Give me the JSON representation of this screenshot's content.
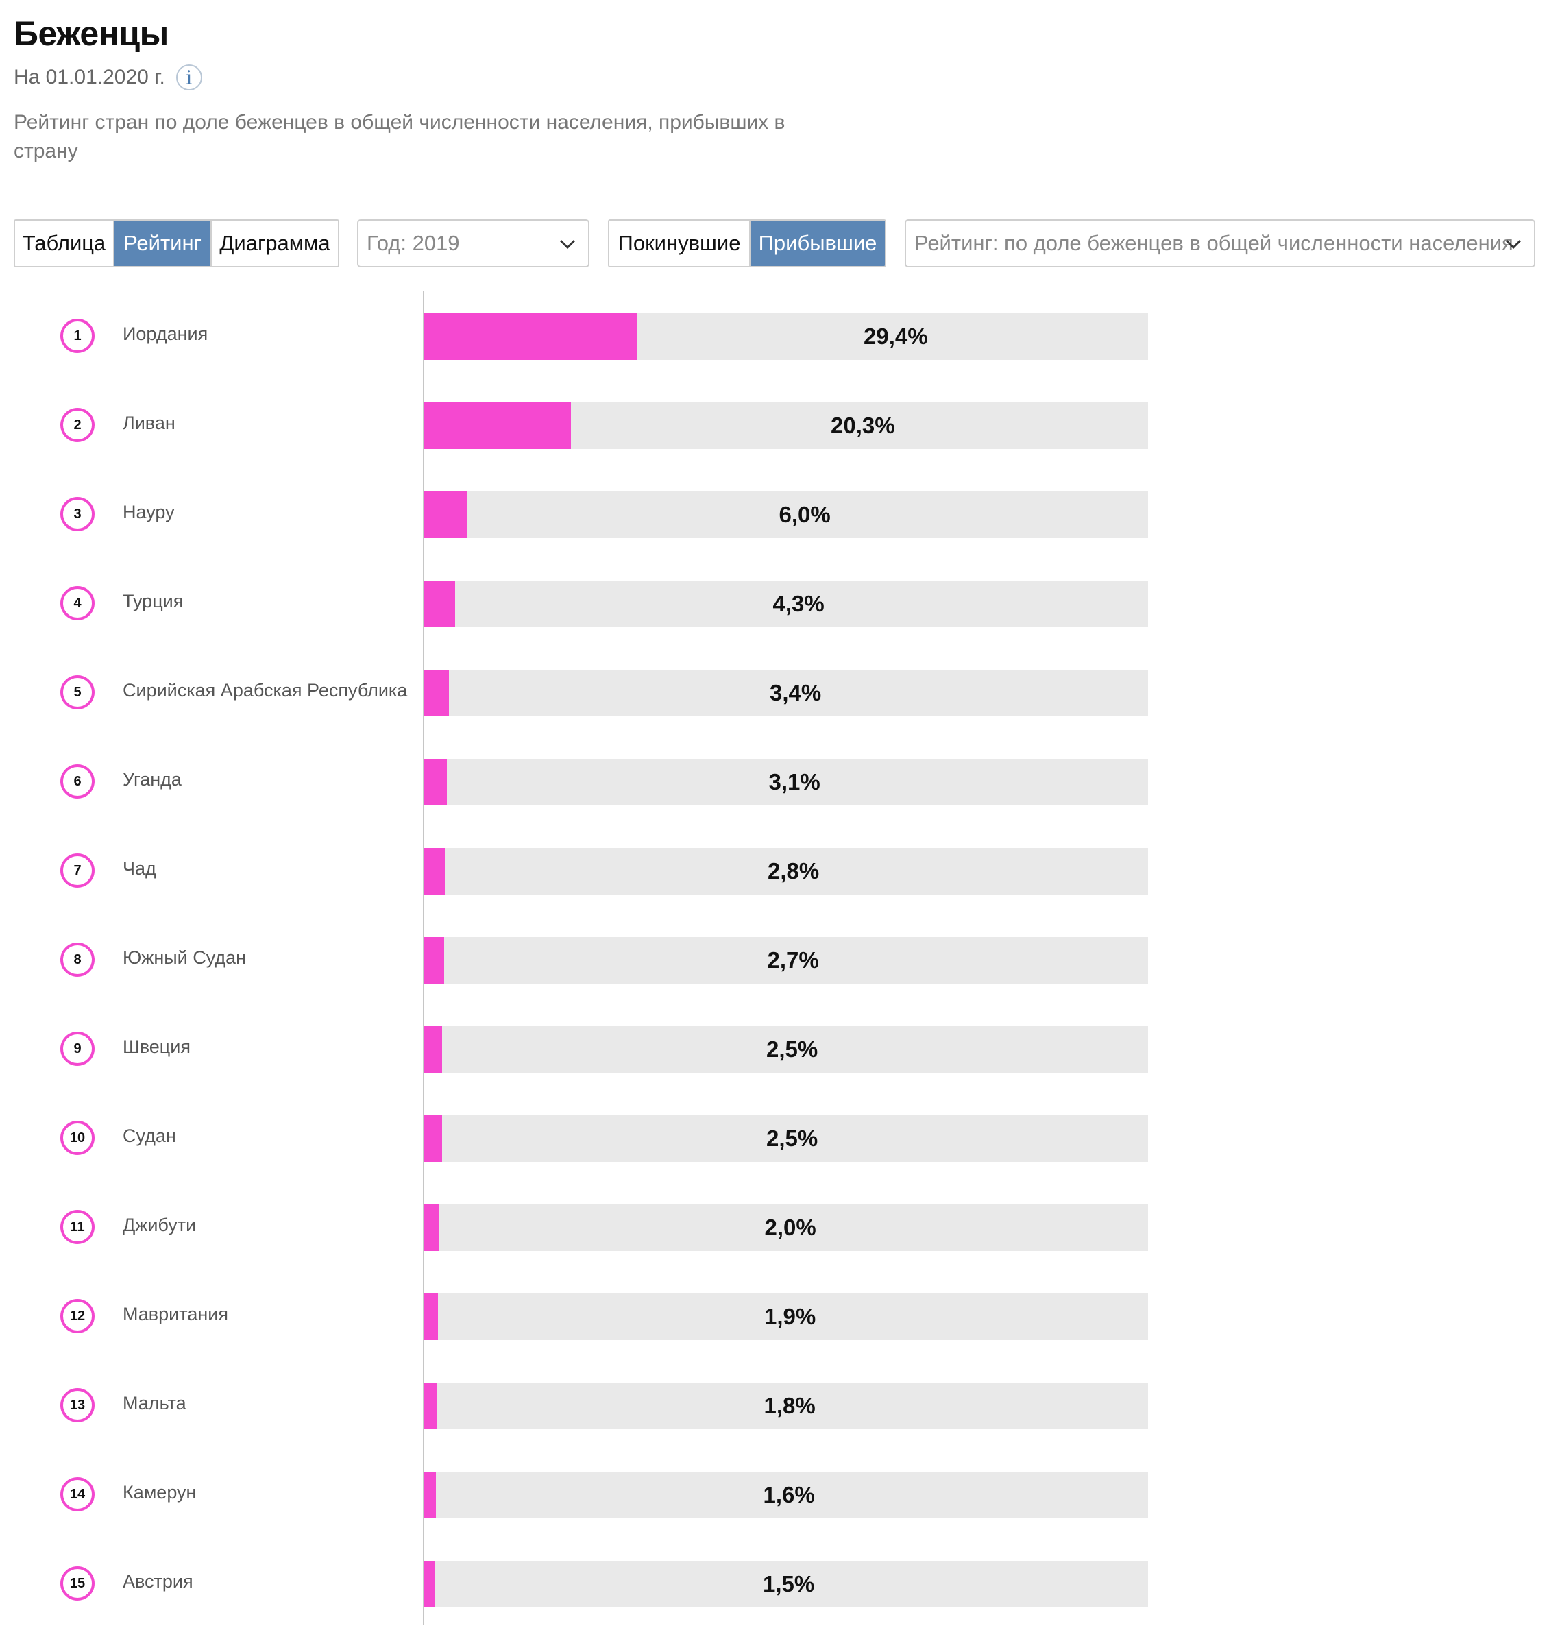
{
  "header": {
    "title": "Беженцы",
    "date": "На 01.01.2020 г.",
    "info_icon": "info-icon",
    "description": "Рейтинг стран по доле беженцев в общей численности населения, прибывших в страну"
  },
  "view_tabs": [
    "Таблица",
    "Рейтинг",
    "Диаграмма"
  ],
  "view_tabs_active": 1,
  "year_select": {
    "label": "Год: 2019",
    "icon": "chevron-down-icon"
  },
  "direction_tabs": [
    "Покинувшие",
    "Прибывшие"
  ],
  "direction_tabs_active": 1,
  "rating_select": {
    "label": "Рейтинг: по доле беженцев в общей численности населения",
    "icon": "chevron-down-icon"
  },
  "colors": {
    "bar": "#f548d0",
    "track": "#e9e9e9",
    "accent": "#5b86b5",
    "rank_ring": "#f348cf"
  },
  "chart_data": {
    "type": "bar",
    "orientation": "horizontal",
    "unit": "%",
    "xlim": [
      0,
      100
    ],
    "categories": [
      "Иордания",
      "Ливан",
      "Науру",
      "Турция",
      "Сирийская Арабская Республика",
      "Уганда",
      "Чад",
      "Южный Судан",
      "Швеция",
      "Судан",
      "Джибути",
      "Мавритания",
      "Мальта",
      "Камерун",
      "Австрия"
    ],
    "ranks": [
      "1",
      "2",
      "3",
      "4",
      "5",
      "6",
      "7",
      "8",
      "9",
      "10",
      "11",
      "12",
      "13",
      "14",
      "15"
    ],
    "values": [
      29.4,
      20.3,
      6.0,
      4.3,
      3.4,
      3.1,
      2.8,
      2.7,
      2.5,
      2.5,
      2.0,
      1.9,
      1.8,
      1.6,
      1.5
    ],
    "labels": [
      "29,4%",
      "20,3%",
      "6,0%",
      "4,3%",
      "3,4%",
      "3,1%",
      "2,8%",
      "2,7%",
      "2,5%",
      "2,5%",
      "2,0%",
      "1,9%",
      "1,8%",
      "1,6%",
      "1,5%"
    ]
  }
}
